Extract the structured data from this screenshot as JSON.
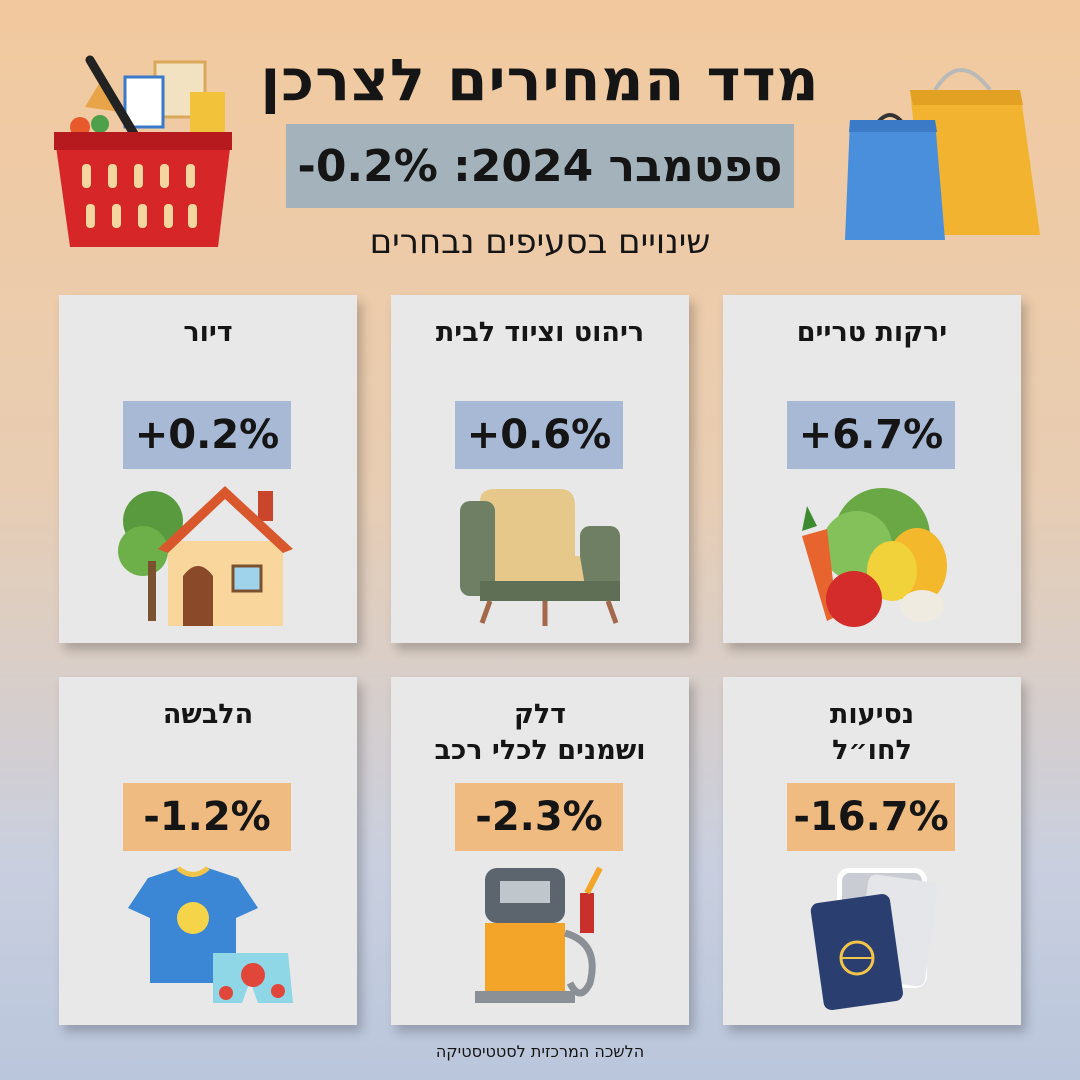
{
  "header": {
    "title": "מדד המחירים לצרכן",
    "subtitle": "ספטמבר 2024: 0.2%-",
    "caption": "שינויים בסעיפים נבחרים"
  },
  "colors": {
    "increase_box": "#a8b9d6",
    "decrease_box": "#f0bb80",
    "subtitle_box": "#a4b3bb"
  },
  "cards": [
    {
      "label_lines": [
        "ירקות טריים"
      ],
      "value": "+6.7%",
      "trend": "increase",
      "icon": "vegetables-icon"
    },
    {
      "label_lines": [
        "ריהוט וציוד לבית"
      ],
      "value": "+0.6%",
      "trend": "increase",
      "icon": "armchair-icon"
    },
    {
      "label_lines": [
        "דיור"
      ],
      "value": "+0.2%",
      "trend": "increase",
      "icon": "house-icon"
    },
    {
      "label_lines": [
        "נסיעות",
        "לחו״ל"
      ],
      "value": "-16.7%",
      "trend": "decrease",
      "icon": "passport-tickets-icon"
    },
    {
      "label_lines": [
        "דלק",
        "ושמנים לכלי רכב"
      ],
      "value": "-2.3%",
      "trend": "decrease",
      "icon": "fuel-pump-icon"
    },
    {
      "label_lines": [
        "הלבשה"
      ],
      "value": "-1.2%",
      "trend": "decrease",
      "icon": "clothing-icon"
    }
  ],
  "footer": {
    "source": "הלשכה המרכזית לסטטיסטיקה"
  }
}
